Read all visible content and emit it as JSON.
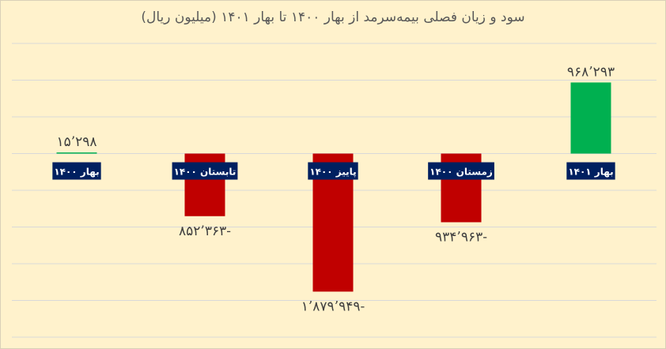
{
  "chart_data": {
    "type": "bar",
    "title": "سود و زیان فصلی بیمه‌سرمد از بهار ۱۴۰۰ تا بهار ۱۴۰۱ (میلیون ریال)",
    "categories": [
      "بهار ۱۴۰۰",
      "تابستان ۱۴۰۰",
      "پاییز ۱۴۰۰",
      "زمستان ۱۴۰۰",
      "بهار ۱۴۰۱"
    ],
    "values": [
      15298,
      -852363,
      -1879949,
      -934963,
      968293
    ],
    "data_labels": [
      "۱۵’۲۹۸",
      "۸۵۲’۳۶۳-",
      "۱’۸۷۹’۹۴۹-",
      "۹۳۴’۹۶۳-",
      "۹۶۸’۲۹۳"
    ],
    "ylim": [
      -2500000,
      1500000
    ],
    "grid": true,
    "legend": "none",
    "colors": {
      "positive": "#00b050",
      "negative": "#c00000",
      "category_box": "#002060",
      "background": "#fff2cc",
      "grid": "#d9d9d9"
    }
  }
}
